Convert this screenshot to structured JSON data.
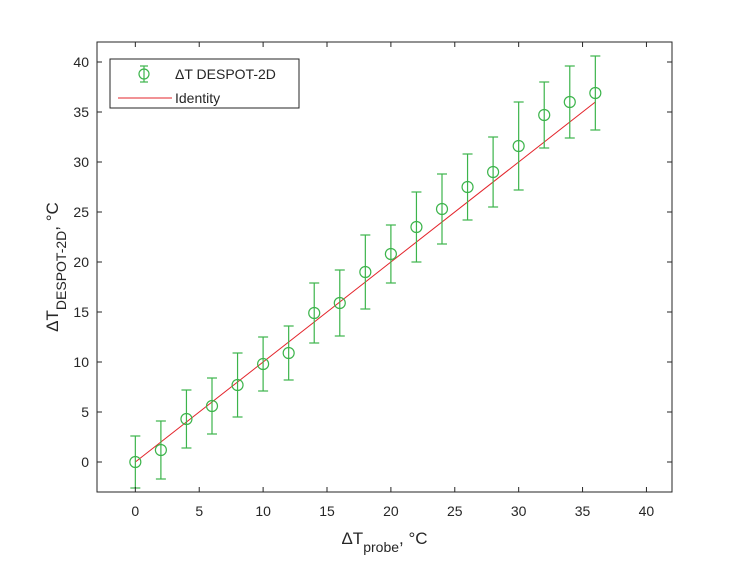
{
  "chart_data": {
    "type": "scatter",
    "title": "",
    "xlabel": {
      "main": "ΔT",
      "sub": "probe",
      "suffix": ", °C"
    },
    "ylabel": {
      "main": "ΔT",
      "sub": "DESPOT-2D",
      "suffix": ", °C"
    },
    "xlim": [
      -3,
      42
    ],
    "ylim": [
      -3,
      42
    ],
    "xticks": [
      0,
      5,
      10,
      15,
      20,
      25,
      30,
      35,
      40
    ],
    "yticks": [
      0,
      5,
      10,
      15,
      20,
      25,
      30,
      35,
      40
    ],
    "grid": false,
    "legend_position": "top-left",
    "series": [
      {
        "name": "ΔT DESPOT-2D",
        "kind": "errorbar",
        "color": "#3cb44b",
        "marker": "circle",
        "x": [
          0,
          2,
          4,
          6,
          8,
          10,
          12,
          14,
          16,
          18,
          20,
          22,
          24,
          26,
          28,
          30,
          32,
          34,
          36
        ],
        "y": [
          0.0,
          1.2,
          4.3,
          5.6,
          7.7,
          9.8,
          10.9,
          14.9,
          15.9,
          19.0,
          20.8,
          23.5,
          25.3,
          27.5,
          29.0,
          31.6,
          34.7,
          36.0,
          36.9
        ],
        "err": [
          2.6,
          2.9,
          2.9,
          2.8,
          3.2,
          2.7,
          2.7,
          3.0,
          3.3,
          3.7,
          2.9,
          3.5,
          3.5,
          3.3,
          3.5,
          4.4,
          3.3,
          3.6,
          3.7
        ]
      },
      {
        "name": "Identity",
        "kind": "line",
        "color": "#e3242b",
        "x": [
          0,
          36
        ],
        "y": [
          0,
          36
        ]
      }
    ]
  }
}
